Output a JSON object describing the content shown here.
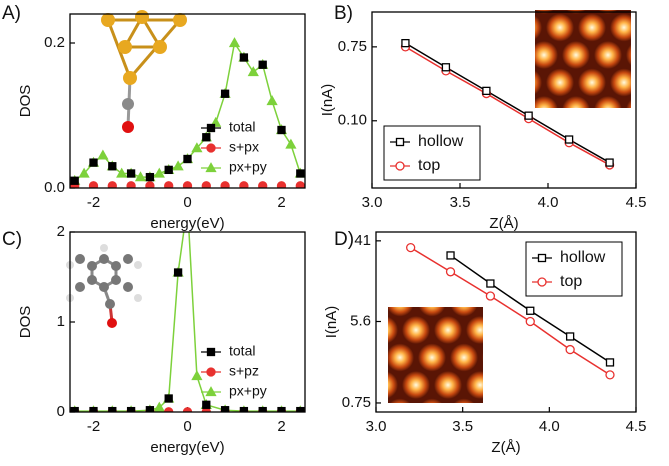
{
  "chart_data": [
    {
      "type": "line",
      "panel_label": "A)",
      "xlabel": "energy(eV)",
      "ylabel": "DOS",
      "xlim": [
        -2.5,
        2.5
      ],
      "ylim": [
        0,
        0.24
      ],
      "xticks": [
        -2,
        0,
        2
      ],
      "yticks": [
        {
          "value": 0,
          "label": "0.0"
        },
        0.2
      ],
      "log_y": false,
      "legend": "lower right",
      "legend_frame": false,
      "markers_filled": true,
      "series": [
        {
          "name": "total",
          "color": "#000000",
          "marker": "square",
          "line": false,
          "x": [
            -2.4,
            -2.0,
            -1.6,
            -1.2,
            -0.8,
            -0.4,
            0,
            0.4,
            0.8,
            1.2,
            1.6,
            2.0,
            2.4
          ],
          "values": [
            0.01,
            0.035,
            0.03,
            0.02,
            0.015,
            0.025,
            0.04,
            0.07,
            0.13,
            0.18,
            0.17,
            0.08,
            0.02
          ]
        },
        {
          "name": "s+px",
          "color": "#e8312f",
          "marker": "circle",
          "line": false,
          "x": [
            -2.4,
            -2.0,
            -1.6,
            -1.2,
            -0.8,
            -0.4,
            0,
            0.4,
            0.8,
            1.2,
            1.6,
            2.0,
            2.4
          ],
          "values": [
            0.003,
            0.003,
            0.003,
            0.003,
            0.003,
            0.003,
            0.003,
            0.003,
            0.003,
            0.003,
            0.003,
            0.003,
            0.003
          ]
        },
        {
          "name": "px+py",
          "color": "#7dd13b",
          "marker": "triangle",
          "line": true,
          "x": [
            -2.4,
            -2.2,
            -2.0,
            -1.8,
            -1.6,
            -1.4,
            -1.2,
            -1.0,
            -0.8,
            -0.6,
            -0.4,
            -0.2,
            0,
            0.2,
            0.4,
            0.6,
            0.8,
            1.0,
            1.2,
            1.4,
            1.6,
            1.8,
            2.0,
            2.2,
            2.4
          ],
          "values": [
            0.01,
            0.02,
            0.035,
            0.045,
            0.03,
            0.02,
            0.02,
            0.015,
            0.015,
            0.02,
            0.025,
            0.03,
            0.04,
            0.055,
            0.07,
            0.09,
            0.13,
            0.2,
            0.18,
            0.16,
            0.17,
            0.12,
            0.08,
            0.06,
            0.02
          ]
        }
      ]
    },
    {
      "type": "line",
      "panel_label": "B)",
      "xlabel": "Z(Å)",
      "ylabel": "I(nA)",
      "xlim": [
        3.0,
        4.5
      ],
      "ylim": [
        0.016,
        1.94
      ],
      "xticks": [
        {
          "value": 3,
          "label": "3.0"
        },
        3.5,
        {
          "value": 4,
          "label": "4.0"
        },
        4.5
      ],
      "yticks": [
        0.75,
        {
          "value": 0.1,
          "label": "0.10"
        }
      ],
      "log_y": true,
      "legend": "lower left",
      "legend_frame": true,
      "markers_filled": false,
      "series": [
        {
          "name": "hollow",
          "color": "#000000",
          "marker": "square",
          "line": true,
          "x": [
            3.19,
            3.42,
            3.65,
            3.89,
            4.12,
            4.35
          ],
          "values": [
            0.83,
            0.43,
            0.226,
            0.115,
            0.06,
            0.032
          ]
        },
        {
          "name": "top",
          "color": "#e8312f",
          "marker": "circle",
          "line": true,
          "x": [
            3.19,
            3.42,
            3.65,
            3.89,
            4.12,
            4.35
          ],
          "values": [
            0.75,
            0.39,
            0.21,
            0.106,
            0.055,
            0.03
          ]
        }
      ]
    },
    {
      "type": "line",
      "panel_label": "C)",
      "xlabel": "energy(eV)",
      "ylabel": "DOS",
      "xlim": [
        -2.5,
        2.5
      ],
      "ylim": [
        0,
        2
      ],
      "xticks": [
        -2,
        0,
        2
      ],
      "yticks": [
        0,
        1,
        2
      ],
      "log_y": false,
      "legend": "lower right",
      "legend_frame": false,
      "markers_filled": true,
      "series": [
        {
          "name": "total",
          "color": "#000000",
          "marker": "square",
          "line": false,
          "x": [
            -2.4,
            -2.0,
            -1.6,
            -1.2,
            -0.8,
            -0.4,
            -0.2,
            0.4,
            0.8,
            1.2,
            1.6,
            2.0,
            2.4
          ],
          "values": [
            0.01,
            0.01,
            0.01,
            0.01,
            0.02,
            0.15,
            1.55,
            0.08,
            0.02,
            0.01,
            0.01,
            0.01,
            0.01
          ]
        },
        {
          "name": "s+pz",
          "color": "#e8312f",
          "marker": "circle",
          "line": false,
          "x": [
            -2.4,
            -2.0,
            -1.6,
            -1.2,
            -0.8,
            -0.4,
            0,
            0.4,
            0.8,
            1.2,
            1.6,
            2.0,
            2.4
          ],
          "values": [
            0.003,
            0.003,
            0.003,
            0.003,
            0.003,
            0.003,
            0.003,
            0.003,
            0.003,
            0.003,
            0.003,
            0.003,
            0.003
          ]
        },
        {
          "name": "px+py",
          "color": "#7dd13b",
          "marker": "triangle",
          "line": true,
          "x": [
            -2.4,
            -2.0,
            -1.6,
            -1.2,
            -0.8,
            -0.6,
            -0.4,
            -0.2,
            0,
            0.2,
            0.4,
            0.8,
            1.2,
            1.6,
            2.0,
            2.4
          ],
          "values": [
            0.01,
            0.01,
            0.01,
            0.01,
            0.02,
            0.05,
            0.15,
            1.55,
            2.3,
            0.4,
            0.08,
            0.02,
            0.01,
            0.01,
            0.01,
            0.01
          ]
        }
      ]
    },
    {
      "type": "line",
      "panel_label": "D)",
      "xlabel": "Z(Å)",
      "ylabel": "I(nA)",
      "xlim": [
        3.0,
        4.5
      ],
      "ylim": [
        0.6,
        51
      ],
      "xticks": [
        {
          "value": 3,
          "label": "3.0"
        },
        3.5,
        {
          "value": 4,
          "label": "4.0"
        },
        4.5
      ],
      "yticks": [
        41,
        5.6,
        0.75
      ],
      "log_y": true,
      "legend": "upper right",
      "legend_frame": true,
      "markers_filled": false,
      "series": [
        {
          "name": "hollow",
          "color": "#000000",
          "marker": "square",
          "line": true,
          "x": [
            3.43,
            3.66,
            3.89,
            4.12,
            4.35
          ],
          "values": [
            28.6,
            14.3,
            7.3,
            3.87,
            2.04
          ]
        },
        {
          "name": "top",
          "color": "#e8312f",
          "marker": "circle",
          "line": true,
          "x": [
            3.2,
            3.43,
            3.66,
            3.89,
            4.12,
            4.35
          ],
          "values": [
            34.7,
            19.1,
            10.5,
            5.6,
            2.8,
            1.5
          ]
        }
      ]
    }
  ]
}
